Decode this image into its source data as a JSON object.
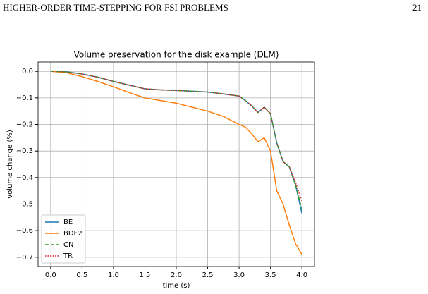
{
  "header": {
    "title": "HIGHER-ORDER TIME-STEPPING FOR FSI PROBLEMS",
    "page": "21"
  },
  "chart_data": {
    "type": "line",
    "title": "Volume preservation for the disk example (DLM)",
    "x_label": "time (s)",
    "y_label": "volume change (%)",
    "x": [
      0,
      0.25,
      0.5,
      0.75,
      1.0,
      1.25,
      1.5,
      1.75,
      2.0,
      2.25,
      2.5,
      2.75,
      3.0,
      3.1,
      3.2,
      3.3,
      3.4,
      3.5,
      3.6,
      3.7,
      3.8,
      3.9,
      4.0
    ],
    "series": [
      {
        "name": "BE",
        "color": "#1f77b4",
        "style": "solid",
        "values": [
          0,
          -0.002,
          -0.01,
          -0.022,
          -0.038,
          -0.052,
          -0.066,
          -0.07,
          -0.072,
          -0.075,
          -0.078,
          -0.085,
          -0.093,
          -0.11,
          -0.13,
          -0.155,
          -0.135,
          -0.16,
          -0.27,
          -0.34,
          -0.36,
          -0.43,
          -0.535
        ]
      },
      {
        "name": "BDF2",
        "color": "#ff7f0e",
        "style": "solid",
        "values": [
          0,
          -0.005,
          -0.02,
          -0.038,
          -0.058,
          -0.08,
          -0.1,
          -0.11,
          -0.12,
          -0.135,
          -0.15,
          -0.17,
          -0.2,
          -0.21,
          -0.235,
          -0.265,
          -0.25,
          -0.3,
          -0.45,
          -0.5,
          -0.58,
          -0.65,
          -0.69
        ]
      },
      {
        "name": "CN",
        "color": "#2ca02c",
        "style": "dashed",
        "values": [
          0,
          -0.002,
          -0.01,
          -0.022,
          -0.038,
          -0.052,
          -0.066,
          -0.07,
          -0.072,
          -0.075,
          -0.078,
          -0.085,
          -0.093,
          -0.11,
          -0.13,
          -0.155,
          -0.135,
          -0.16,
          -0.27,
          -0.34,
          -0.36,
          -0.43,
          -0.52
        ]
      },
      {
        "name": "TR",
        "color": "#d62728",
        "style": "dotted",
        "values": [
          0,
          -0.002,
          -0.01,
          -0.022,
          -0.038,
          -0.052,
          -0.066,
          -0.07,
          -0.072,
          -0.075,
          -0.078,
          -0.085,
          -0.093,
          -0.11,
          -0.13,
          -0.155,
          -0.135,
          -0.16,
          -0.27,
          -0.34,
          -0.36,
          -0.42,
          -0.49
        ]
      }
    ],
    "xlim": [
      -0.2,
      4.2
    ],
    "xticks": [
      {
        "value": 0,
        "label": "0.0"
      },
      0.5,
      {
        "value": 1,
        "label": "1.0"
      },
      1.5,
      {
        "value": 2,
        "label": "2.0"
      },
      2.5,
      {
        "value": 3,
        "label": "3.0"
      },
      3.5,
      {
        "value": 4,
        "label": "4.0"
      }
    ],
    "ylim": [
      -0.735,
      0.035
    ],
    "yticks": [
      {
        "value": 0,
        "label": "0.0"
      },
      {
        "value": -0.1,
        "label": "−0.1"
      },
      {
        "value": -0.2,
        "label": "−0.2"
      },
      {
        "value": -0.3,
        "label": "−0.3"
      },
      {
        "value": -0.4,
        "label": "−0.4"
      },
      {
        "value": -0.5,
        "label": "−0.5"
      },
      {
        "value": -0.6,
        "label": "−0.6"
      },
      {
        "value": -0.7,
        "label": "−0.7"
      }
    ],
    "grid": true,
    "legend": "lower left"
  }
}
